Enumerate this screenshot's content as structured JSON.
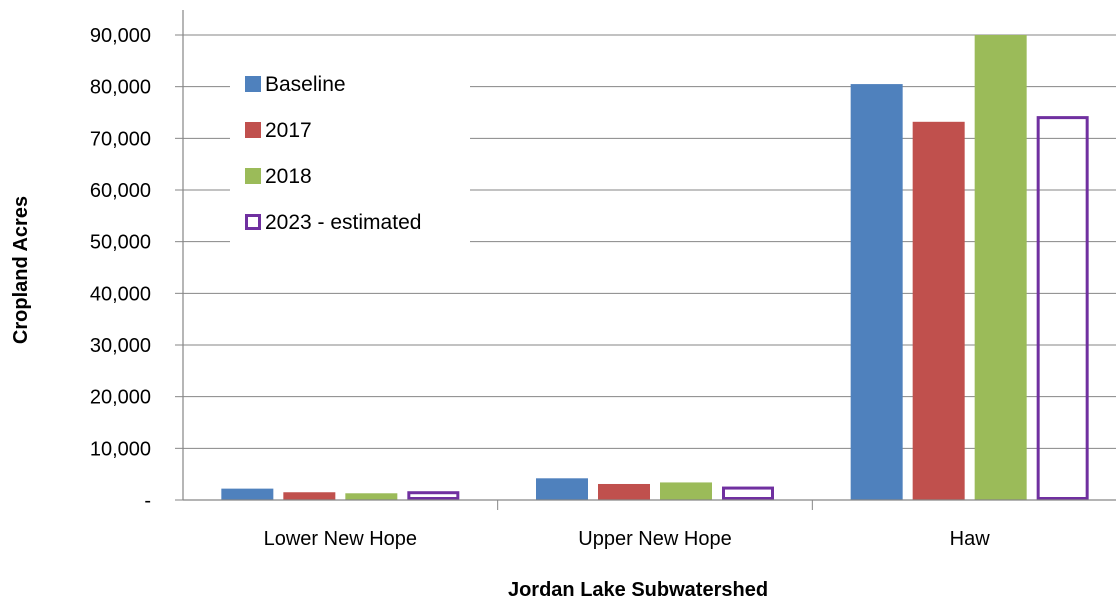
{
  "chart_data": {
    "type": "bar",
    "title": "",
    "xlabel": "Jordan Lake Subwatershed",
    "ylabel": "Cropland Acres",
    "categories": [
      "Lower New Hope",
      "Upper New Hope",
      "Haw"
    ],
    "ylim": [
      0,
      90000
    ],
    "yticks": [
      {
        "value": 0,
        "label": "-"
      },
      {
        "value": 10000,
        "label": "10,000"
      },
      {
        "value": 20000,
        "label": "20,000"
      },
      {
        "value": 30000,
        "label": "30,000"
      },
      {
        "value": 40000,
        "label": "40,000"
      },
      {
        "value": 50000,
        "label": "50,000"
      },
      {
        "value": 60000,
        "label": "60,000"
      },
      {
        "value": 70000,
        "label": "70,000"
      },
      {
        "value": 80000,
        "label": "80,000"
      },
      {
        "value": 90000,
        "label": "90,000"
      }
    ],
    "grid": true,
    "legend_position": "top-left",
    "series": [
      {
        "name": "Baseline",
        "color": "#4F81BD",
        "style": "filled",
        "values": [
          2200,
          4200,
          80500
        ]
      },
      {
        "name": "2017",
        "color": "#C0504D",
        "style": "filled",
        "values": [
          1500,
          3100,
          73200
        ]
      },
      {
        "name": "2018",
        "color": "#9BBB59",
        "style": "filled",
        "values": [
          1300,
          3400,
          90000
        ]
      },
      {
        "name": "2023 - estimated",
        "color": "#7030A0",
        "style": "outline",
        "values": [
          1700,
          2600,
          74300
        ]
      }
    ]
  }
}
